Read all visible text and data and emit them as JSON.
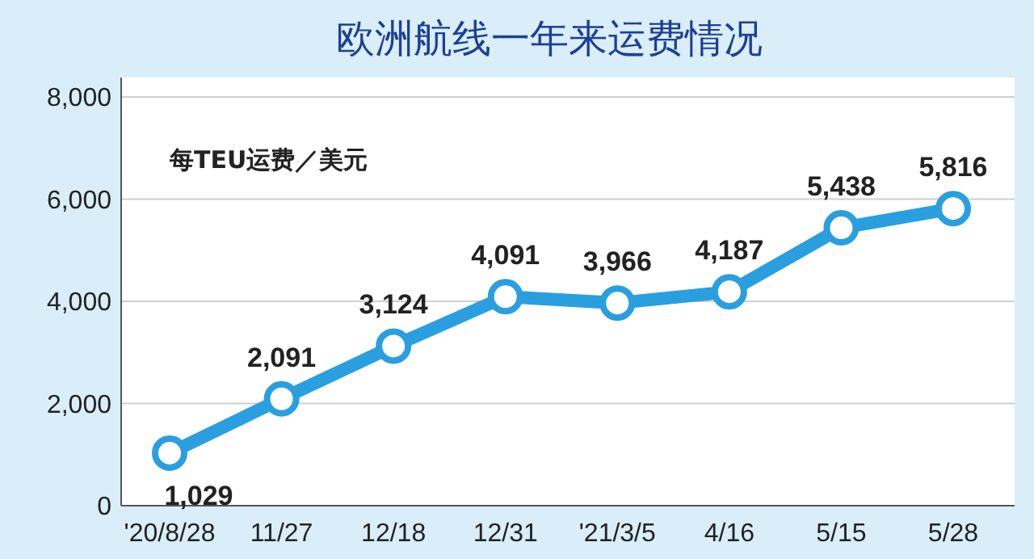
{
  "chart_data": {
    "type": "line",
    "title": "欧洲航线一年来运费情况",
    "ylabel": "每TEU运费／美元",
    "categories": [
      "'20/8/28",
      "11/27",
      "12/18",
      "12/31",
      "'21/3/5",
      "4/16",
      "5/15",
      "5/28"
    ],
    "series": [
      {
        "color": "#2a9fe0",
        "values": [
          1029,
          2091,
          3124,
          4091,
          3966,
          4187,
          5438,
          5816
        ],
        "value_labels": [
          "1,029",
          "2,091",
          "3,124",
          "4,091",
          "3,966",
          "4,187",
          "5,438",
          "5,816"
        ]
      }
    ],
    "ylim": [
      0,
      8000
    ],
    "yticks": [
      0,
      {
        "value": 2000,
        "label": "2,000"
      },
      {
        "value": 4000,
        "label": "4,000"
      },
      {
        "value": 6000,
        "label": "6,000"
      },
      {
        "value": 8000,
        "label": "8,000"
      }
    ],
    "grid": "y",
    "marker": "circle",
    "line_style": "solid"
  }
}
